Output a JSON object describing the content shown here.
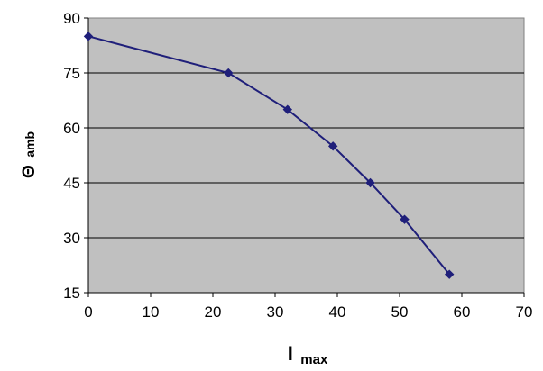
{
  "chart_data": {
    "type": "line",
    "x": [
      0,
      22.5,
      32,
      39.3,
      45.3,
      50.8,
      58
    ],
    "series": [
      {
        "values": [
          85,
          75,
          65,
          55,
          45,
          35,
          20
        ],
        "color": "#1f1f7a"
      }
    ],
    "xlim": [
      0,
      70
    ],
    "ylim": [
      15,
      90
    ],
    "xticks": [
      0,
      10,
      20,
      30,
      40,
      50,
      60,
      70
    ],
    "yticks": [
      15,
      30,
      45,
      60,
      75,
      90
    ],
    "xticklabels": [
      "0",
      "10",
      "20",
      "30",
      "40",
      "50",
      "60",
      "70"
    ],
    "yticklabels": [
      "15",
      "30",
      "45",
      "60",
      "75",
      "90"
    ],
    "xlabel": {
      "main": "I",
      "sub": "max"
    },
    "ylabel": {
      "main": "Θ",
      "sub": "amb"
    },
    "grid": "horizontal",
    "plot_background": "#c0c0c0",
    "marker": "diamond"
  }
}
